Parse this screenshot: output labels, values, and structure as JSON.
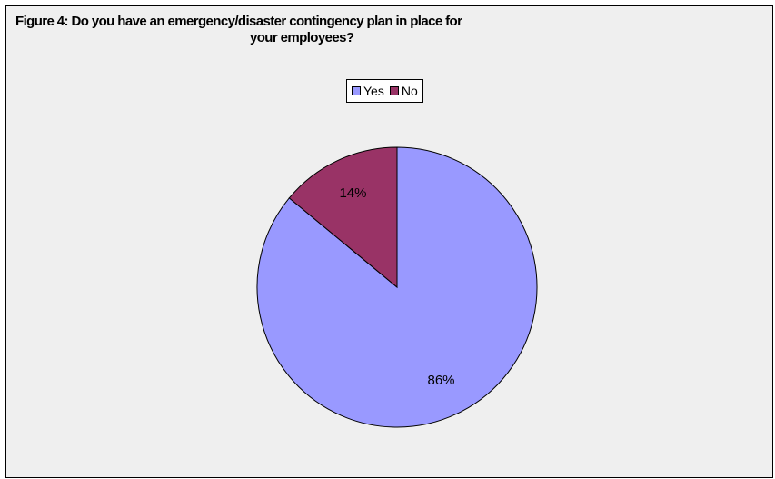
{
  "chart_data": {
    "type": "pie",
    "title_line1": "Figure 4: Do you have an emergency/disaster contingency plan in place for",
    "title_line2": "your employees?",
    "categories": [
      "Yes",
      "No"
    ],
    "values": [
      86,
      14
    ],
    "labels": [
      "86%",
      "14%"
    ],
    "colors": [
      "#9999ff",
      "#993366"
    ],
    "legend": "top-center"
  }
}
